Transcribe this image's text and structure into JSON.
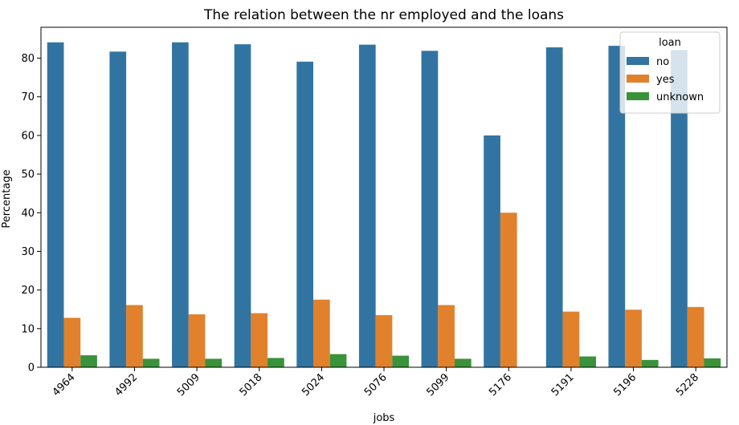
{
  "chart_data": {
    "type": "bar",
    "title": "The relation between the nr employed and the loans",
    "xlabel": "jobs",
    "ylabel": "Percentage",
    "ylim": [
      0,
      88
    ],
    "yticks": [
      0,
      10,
      20,
      30,
      40,
      50,
      60,
      70,
      80
    ],
    "grid": false,
    "legend": {
      "title": "loan",
      "placement": "top-right"
    },
    "categories": [
      "4964",
      "4992",
      "5009",
      "5018",
      "5024",
      "5076",
      "5099",
      "5176",
      "5191",
      "5196",
      "5228"
    ],
    "series": [
      {
        "name": "no",
        "color": "#3274a1",
        "values": [
          84.1,
          81.7,
          84.1,
          83.6,
          79.1,
          83.5,
          81.9,
          60.0,
          82.8,
          83.2,
          82.1
        ]
      },
      {
        "name": "yes",
        "color": "#e1812c",
        "values": [
          12.8,
          16.1,
          13.7,
          14.0,
          17.5,
          13.5,
          16.1,
          40.0,
          14.4,
          14.9,
          15.6
        ]
      },
      {
        "name": "unknown",
        "color": "#3a923a",
        "values": [
          3.1,
          2.2,
          2.2,
          2.4,
          3.4,
          3.0,
          2.2,
          0.0,
          2.8,
          1.9,
          2.3
        ]
      }
    ]
  }
}
